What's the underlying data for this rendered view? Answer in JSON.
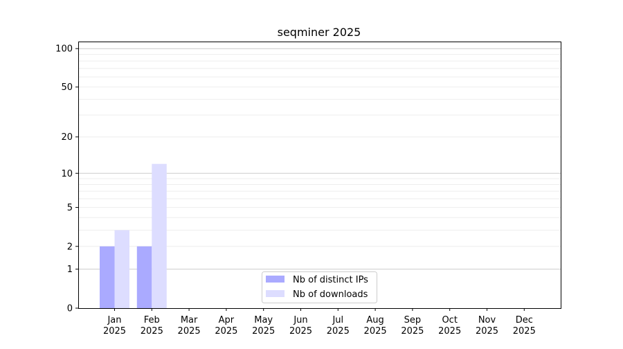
{
  "chart_data": {
    "type": "bar",
    "title": "seqminer 2025",
    "xlabel": "",
    "ylabel": "",
    "yscale": "symlog",
    "ylim": [
      0,
      113
    ],
    "yticks": [
      0,
      1,
      2,
      5,
      10,
      20,
      50,
      100
    ],
    "grid": true,
    "legend_position": "lower-center",
    "categories": [
      "Jan\n2025",
      "Feb\n2025",
      "Mar\n2025",
      "Apr\n2025",
      "May\n2025",
      "Jun\n2025",
      "Jul\n2025",
      "Aug\n2025",
      "Sep\n2025",
      "Oct\n2025",
      "Nov\n2025",
      "Dec\n2025"
    ],
    "series": [
      {
        "name": "Nb of distinct IPs",
        "color": "#aaaaff",
        "values": [
          2,
          2,
          0,
          0,
          0,
          0,
          0,
          0,
          0,
          0,
          0,
          0
        ]
      },
      {
        "name": "Nb of downloads",
        "color": "#ddddff",
        "values": [
          3,
          12,
          0,
          0,
          0,
          0,
          0,
          0,
          0,
          0,
          0,
          0
        ]
      }
    ]
  }
}
